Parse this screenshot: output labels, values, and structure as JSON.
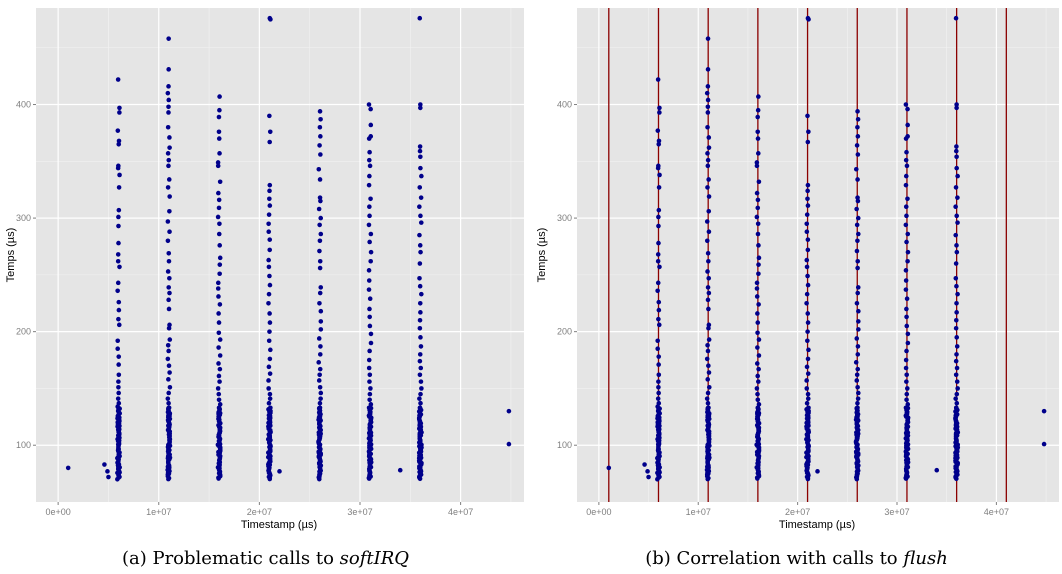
{
  "figure": {
    "panels": [
      {
        "caption_prefix": "(a) Problematic calls to ",
        "caption_emph": "softIRQ"
      },
      {
        "caption_prefix": "(b) Correlation with calls to ",
        "caption_emph": "flush"
      }
    ]
  },
  "colors": {
    "panel_bg": "#e5e5e5",
    "grid_major": "#ffffff",
    "grid_minor": "#f2f2f2",
    "points": "#00008b",
    "flush_lines": "#8b0000",
    "axis_text": "#7f7f7f"
  },
  "chart_data": [
    {
      "type": "scatter",
      "title": "",
      "xlabel": "Timestamp (µs)",
      "ylabel": "Temps (µs)",
      "xlim": [
        -2200000,
        46300000
      ],
      "ylim": [
        50,
        485
      ],
      "x_ticks": [
        0,
        10000000,
        20000000,
        30000000,
        40000000
      ],
      "x_tick_labels": [
        "0e+00",
        "1e+07",
        "2e+07",
        "3e+07",
        "4e+07"
      ],
      "y_ticks": [
        100,
        200,
        300,
        400
      ],
      "y_tick_labels": [
        "100",
        "200",
        "300",
        "400"
      ],
      "grid": true,
      "burst_times": [
        6000000,
        11000000,
        16000000,
        21000000,
        26000000,
        31000000,
        36000000
      ],
      "burst_min": 70,
      "burst_highs": [
        [
          422,
          397,
          393,
          377,
          368,
          365,
          346,
          344,
          338,
          327,
          307,
          301,
          293,
          278,
          268,
          262,
          257,
          243,
          236,
          226,
          219,
          211,
          206,
          192,
          185,
          178,
          171,
          162,
          156,
          151,
          146,
          141,
          137,
          134
        ],
        [
          458,
          431,
          416,
          410,
          404,
          398,
          393,
          380,
          371,
          362,
          357,
          351,
          346,
          334,
          327,
          319,
          306,
          297,
          288,
          280,
          269,
          262,
          253,
          247,
          239,
          234,
          228,
          220,
          206,
          203,
          193,
          188,
          183,
          176,
          170,
          164,
          158,
          151,
          146,
          141,
          137,
          133
        ],
        [
          407,
          395,
          389,
          376,
          370,
          357,
          349,
          346,
          332,
          322,
          316,
          309,
          301,
          295,
          286,
          276,
          265,
          259,
          251,
          243,
          238,
          231,
          224,
          216,
          208,
          199,
          193,
          186,
          179,
          172,
          167,
          161,
          156,
          150,
          145,
          140,
          136,
          133
        ],
        [
          476,
          475,
          390,
          376,
          367,
          329,
          324,
          317,
          311,
          303,
          295,
          288,
          281,
          272,
          263,
          257,
          249,
          241,
          233,
          225,
          216,
          208,
          200,
          192,
          184,
          176,
          169,
          163,
          157,
          150,
          145,
          141,
          137,
          133
        ],
        [
          394,
          387,
          380,
          372,
          364,
          356,
          343,
          334,
          318,
          315,
          308,
          300,
          294,
          286,
          280,
          271,
          262,
          256,
          239,
          234,
          225,
          218,
          209,
          202,
          194,
          187,
          180,
          173,
          167,
          162,
          157,
          151,
          146,
          141,
          137,
          133
        ],
        [
          400,
          396,
          382,
          372,
          370,
          358,
          351,
          346,
          337,
          329,
          317,
          310,
          302,
          294,
          286,
          279,
          270,
          262,
          254,
          245,
          237,
          229,
          220,
          213,
          205,
          198,
          190,
          183,
          175,
          168,
          162,
          156,
          150,
          145,
          140,
          136,
          133
        ],
        [
          476,
          400,
          397,
          363,
          359,
          354,
          344,
          337,
          327,
          318,
          310,
          302,
          296,
          285,
          276,
          270,
          260,
          247,
          240,
          233,
          225,
          217,
          210,
          203,
          195,
          187,
          180,
          174,
          168,
          162,
          156,
          150,
          145,
          141,
          137,
          133
        ]
      ],
      "outliers": [
        {
          "x": 1000000,
          "y": 80
        },
        {
          "x": 4600000,
          "y": 83
        },
        {
          "x": 4900000,
          "y": 77
        },
        {
          "x": 5000000,
          "y": 72
        },
        {
          "x": 22000000,
          "y": 77
        },
        {
          "x": 34000000,
          "y": 78
        },
        {
          "x": 44800000,
          "y": 130
        },
        {
          "x": 44800000,
          "y": 101
        }
      ],
      "vlines": []
    },
    {
      "type": "scatter",
      "title": "",
      "xlabel": "Timestamp (µs)",
      "ylabel": "Temps (µs)",
      "xlim": [
        -2200000,
        46300000
      ],
      "ylim": [
        50,
        485
      ],
      "x_ticks": [
        0,
        10000000,
        20000000,
        30000000,
        40000000
      ],
      "x_tick_labels": [
        "0e+00",
        "1e+07",
        "2e+07",
        "3e+07",
        "4e+07"
      ],
      "y_ticks": [
        100,
        200,
        300,
        400
      ],
      "y_tick_labels": [
        "100",
        "200",
        "300",
        "400"
      ],
      "grid": true,
      "burst_times": [
        6000000,
        11000000,
        16000000,
        21000000,
        26000000,
        31000000,
        36000000
      ],
      "burst_min": 70,
      "burst_highs": [
        [
          422,
          397,
          393,
          377,
          368,
          365,
          346,
          344,
          338,
          327,
          307,
          301,
          293,
          278,
          268,
          262,
          257,
          243,
          236,
          226,
          219,
          211,
          206,
          192,
          185,
          178,
          171,
          162,
          156,
          151,
          146,
          141,
          137,
          134
        ],
        [
          458,
          431,
          416,
          410,
          404,
          398,
          393,
          380,
          371,
          362,
          357,
          351,
          346,
          334,
          327,
          319,
          306,
          297,
          288,
          280,
          269,
          262,
          253,
          247,
          239,
          234,
          228,
          220,
          206,
          203,
          193,
          188,
          183,
          176,
          170,
          164,
          158,
          151,
          146,
          141,
          137,
          133
        ],
        [
          407,
          395,
          389,
          376,
          370,
          357,
          349,
          346,
          332,
          322,
          316,
          309,
          301,
          295,
          286,
          276,
          265,
          259,
          251,
          243,
          238,
          231,
          224,
          216,
          208,
          199,
          193,
          186,
          179,
          172,
          167,
          161,
          156,
          150,
          145,
          140,
          136,
          133
        ],
        [
          476,
          475,
          390,
          376,
          367,
          329,
          324,
          317,
          311,
          303,
          295,
          288,
          281,
          272,
          263,
          257,
          249,
          241,
          233,
          225,
          216,
          208,
          200,
          192,
          184,
          176,
          169,
          163,
          157,
          150,
          145,
          141,
          137,
          133
        ],
        [
          394,
          387,
          380,
          372,
          364,
          356,
          343,
          334,
          318,
          315,
          308,
          300,
          294,
          286,
          280,
          271,
          262,
          256,
          239,
          234,
          225,
          218,
          209,
          202,
          194,
          187,
          180,
          173,
          167,
          162,
          157,
          151,
          146,
          141,
          137,
          133
        ],
        [
          400,
          396,
          382,
          372,
          370,
          358,
          351,
          346,
          337,
          329,
          317,
          310,
          302,
          294,
          286,
          279,
          270,
          262,
          254,
          245,
          237,
          229,
          220,
          213,
          205,
          198,
          190,
          183,
          175,
          168,
          162,
          156,
          150,
          145,
          140,
          136,
          133
        ],
        [
          476,
          400,
          397,
          363,
          359,
          354,
          344,
          337,
          327,
          318,
          310,
          302,
          296,
          285,
          276,
          270,
          260,
          247,
          240,
          233,
          225,
          217,
          210,
          203,
          195,
          187,
          180,
          174,
          168,
          162,
          156,
          150,
          145,
          141,
          137,
          133
        ]
      ],
      "outliers": [
        {
          "x": 1000000,
          "y": 80
        },
        {
          "x": 4600000,
          "y": 83
        },
        {
          "x": 4900000,
          "y": 77
        },
        {
          "x": 5000000,
          "y": 72
        },
        {
          "x": 22000000,
          "y": 77
        },
        {
          "x": 34000000,
          "y": 78
        },
        {
          "x": 44800000,
          "y": 130
        },
        {
          "x": 44800000,
          "y": 101
        }
      ],
      "vlines": [
        1000000,
        6000000,
        11000000,
        16000000,
        21000000,
        26000000,
        31000000,
        36000000,
        41000000
      ]
    }
  ]
}
